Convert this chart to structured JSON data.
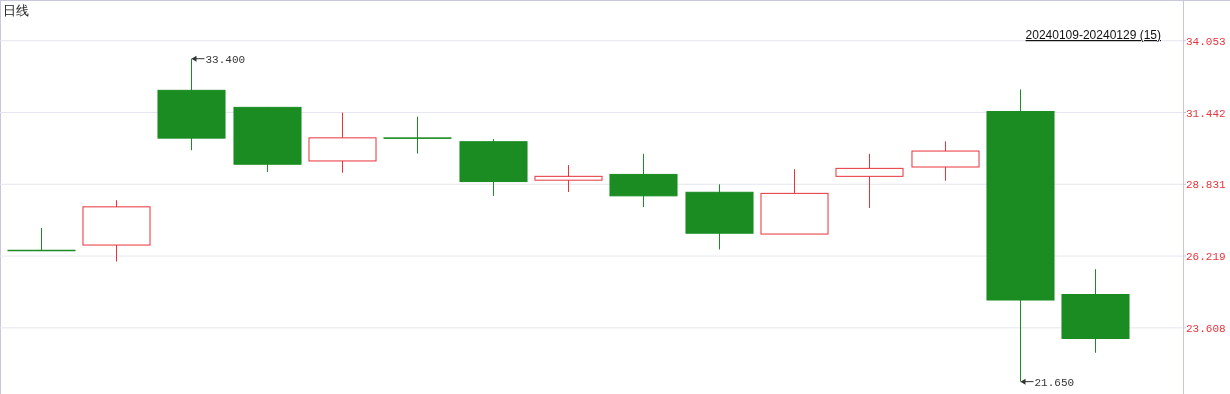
{
  "chart_data": {
    "type": "candlestick",
    "title": "日线",
    "categories": [
      null,
      null,
      null,
      null,
      null,
      null,
      null,
      null,
      null,
      null,
      null,
      null,
      null,
      null,
      null
    ],
    "ohlc": [
      [
        26.43,
        27.24,
        26.43,
        26.43
      ],
      [
        26.62,
        28.25,
        26.02,
        28.01
      ],
      [
        32.25,
        33.4,
        30.07,
        30.51
      ],
      [
        31.63,
        31.63,
        29.28,
        29.56
      ],
      [
        29.68,
        31.44,
        29.25,
        30.52
      ],
      [
        30.52,
        31.29,
        29.95,
        30.52
      ],
      [
        30.38,
        30.48,
        28.41,
        28.93
      ],
      [
        28.98,
        29.53,
        28.55,
        29.12
      ],
      [
        29.19,
        29.94,
        28.0,
        28.41
      ],
      [
        28.54,
        28.83,
        26.46,
        27.05
      ],
      [
        27.02,
        29.38,
        27.02,
        28.5
      ],
      [
        29.12,
        29.94,
        27.97,
        29.41
      ],
      [
        29.46,
        30.39,
        28.96,
        30.04
      ],
      [
        31.48,
        32.28,
        21.65,
        24.62
      ],
      [
        24.82,
        25.74,
        22.7,
        23.22
      ]
    ],
    "colors": [
      "#1a8c22",
      "#e8333b",
      "#1a8c22",
      "#1a8c22",
      "#e8333b",
      "#1a8c22",
      "#1a8c22",
      "#e8333b",
      "#1a8c22",
      "#1a8c22",
      "#e8333b",
      "#e8333b",
      "#e8333b",
      "#1a8c22",
      "#1a8c22"
    ],
    "ylim": [
      21.2,
      35.5
    ],
    "yticks": [
      23.608,
      26.219,
      28.831,
      31.442,
      34.053
    ],
    "grid": "y",
    "annotations": [
      "33.400",
      "21.650",
      "20240109-20240129 (15)"
    ]
  }
}
